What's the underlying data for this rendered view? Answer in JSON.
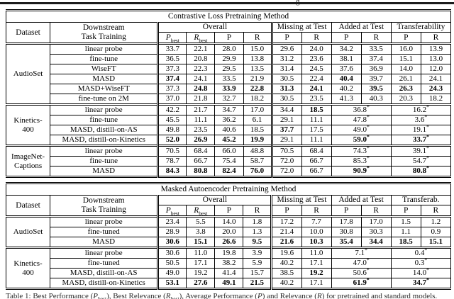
{
  "page": {
    "top_fragment": "g",
    "caption_segments": [
      {
        "t": "Table 1: Best Performance ("
      },
      {
        "t": "P",
        "i": 1
      },
      {
        "t": "best",
        "sub": 1
      },
      {
        "t": "), Best Relevance ("
      },
      {
        "t": "R",
        "i": 1
      },
      {
        "t": "best",
        "sub": 1
      },
      {
        "t": "), Average Performance ("
      },
      {
        "t": "P",
        "i": 1
      },
      {
        "t": ") and Relevance ("
      },
      {
        "t": "R",
        "i": 1
      },
      {
        "t": ") for pretrained and standard models."
      }
    ]
  },
  "tables": [
    {
      "title": "Contrastive Loss Pretraining Method",
      "header": {
        "dataset": "Dataset",
        "task": [
          "Downstream",
          "Task Training"
        ],
        "groups": [
          {
            "label": "Overall",
            "cols": [
              {
                "p": "P",
                "sub": "best",
                "i": 1
              },
              {
                "p": "R",
                "sub": "best",
                "i": 1
              },
              {
                "p": "P"
              },
              {
                "p": "R"
              }
            ]
          },
          {
            "label": "Missing at Test",
            "cols": [
              {
                "p": "P"
              },
              {
                "p": "R"
              }
            ]
          },
          {
            "label": "Added at Test",
            "cols": [
              {
                "p": "P"
              },
              {
                "p": "R"
              }
            ]
          },
          {
            "label": "Transferability",
            "cols": [
              {
                "p": "P"
              },
              {
                "p": "R"
              }
            ]
          }
        ]
      },
      "groups": [
        {
          "dataset_lines": [
            "AudioSet"
          ],
          "rows": [
            {
              "method": "linear probe",
              "cells": [
                {
                  "v": "33.7"
                },
                {
                  "v": "22.1"
                },
                {
                  "v": "28.0"
                },
                {
                  "v": "15.0"
                },
                {
                  "v": "29.6"
                },
                {
                  "v": "24.0"
                },
                {
                  "v": "34.2"
                },
                {
                  "v": "33.5"
                },
                {
                  "v": "16.0"
                },
                {
                  "v": "13.9"
                }
              ]
            },
            {
              "method": "fine-tune",
              "cells": [
                {
                  "v": "36.5"
                },
                {
                  "v": "20.8"
                },
                {
                  "v": "29.9"
                },
                {
                  "v": "13.8"
                },
                {
                  "v": "31.2"
                },
                {
                  "v": "23.6"
                },
                {
                  "v": "38.1"
                },
                {
                  "v": "37.4"
                },
                {
                  "v": "15.1"
                },
                {
                  "v": "13.0"
                }
              ]
            },
            {
              "method": "WiseFT",
              "cells": [
                {
                  "v": "37.3"
                },
                {
                  "v": "22.3"
                },
                {
                  "v": "29.5"
                },
                {
                  "v": "13.5"
                },
                {
                  "v": "31.4"
                },
                {
                  "v": "24.5"
                },
                {
                  "v": "37.6"
                },
                {
                  "v": "36.9"
                },
                {
                  "v": "14.0"
                },
                {
                  "v": "12.0"
                }
              ]
            },
            {
              "method": "MASD",
              "cells": [
                {
                  "v": "37.4",
                  "b": 1
                },
                {
                  "v": "24.1"
                },
                {
                  "v": "33.5"
                },
                {
                  "v": "21.9"
                },
                {
                  "v": "30.5"
                },
                {
                  "v": "22.4"
                },
                {
                  "v": "40.4",
                  "b": 1
                },
                {
                  "v": "39.7"
                },
                {
                  "v": "26.1"
                },
                {
                  "v": "24.1"
                }
              ]
            },
            {
              "method": "MASD+WiseFT",
              "cells": [
                {
                  "v": "37.3"
                },
                {
                  "v": "24.8",
                  "b": 1
                },
                {
                  "v": "33.9",
                  "b": 1
                },
                {
                  "v": "22.8",
                  "b": 1
                },
                {
                  "v": "31.3",
                  "b": 1
                },
                {
                  "v": "24.1",
                  "b": 1
                },
                {
                  "v": "40.2"
                },
                {
                  "v": "39.5",
                  "b": 1
                },
                {
                  "v": "26.3",
                  "b": 1
                },
                {
                  "v": "24.3",
                  "b": 1
                }
              ]
            },
            {
              "method": "fine-tune on 2M",
              "cells": [
                {
                  "v": "37.0"
                },
                {
                  "v": "21.8"
                },
                {
                  "v": "32.7"
                },
                {
                  "v": "18.2"
                },
                {
                  "v": "30.5"
                },
                {
                  "v": "23.5"
                },
                {
                  "v": "41.3"
                },
                {
                  "v": "40.3"
                },
                {
                  "v": "20.3"
                },
                {
                  "v": "18.2"
                }
              ]
            }
          ]
        },
        {
          "dataset_lines": [
            "Kinetics-",
            "400"
          ],
          "rows": [
            {
              "method": "linear probe",
              "cells": [
                {
                  "v": "42.2"
                },
                {
                  "v": "21.7"
                },
                {
                  "v": "34.7"
                },
                {
                  "v": "17.0"
                },
                {
                  "v": "34.4"
                },
                {
                  "v": "18.5",
                  "b": 1
                },
                {
                  "v": "36.8",
                  "m": 1
                },
                {
                  "v": "16.2",
                  "m": 1
                }
              ]
            },
            {
              "method": "fine-tune",
              "cells": [
                {
                  "v": "45.5"
                },
                {
                  "v": "11.1"
                },
                {
                  "v": "36.2"
                },
                {
                  "v": "6.1"
                },
                {
                  "v": "29.1"
                },
                {
                  "v": "11.1"
                },
                {
                  "v": "47.8",
                  "m": 1
                },
                {
                  "v": "3.6",
                  "m": 1
                }
              ]
            },
            {
              "method": "MASD, distill-on-AS",
              "cells": [
                {
                  "v": "49.8"
                },
                {
                  "v": "23.5"
                },
                {
                  "v": "40.6"
                },
                {
                  "v": "18.5"
                },
                {
                  "v": "37.7",
                  "b": 1
                },
                {
                  "v": "17.5"
                },
                {
                  "v": "49.0",
                  "m": 1
                },
                {
                  "v": "19.1",
                  "m": 1
                }
              ]
            },
            {
              "method": "MASD, distill-on-Kinetics",
              "cells": [
                {
                  "v": "52.0",
                  "b": 1
                },
                {
                  "v": "26.9",
                  "b": 1
                },
                {
                  "v": "45.2",
                  "b": 1
                },
                {
                  "v": "19.9",
                  "b": 1
                },
                {
                  "v": "29.1"
                },
                {
                  "v": "11.1"
                },
                {
                  "v": "59.0",
                  "m": 1,
                  "b": 1
                },
                {
                  "v": "33.7",
                  "m": 1,
                  "b": 1
                }
              ]
            }
          ]
        },
        {
          "dataset_lines": [
            "ImageNet-",
            "Captions"
          ],
          "rows": [
            {
              "method": "linear probe",
              "cells": [
                {
                  "v": "70.5"
                },
                {
                  "v": "68.4"
                },
                {
                  "v": "66.0"
                },
                {
                  "v": "48.8"
                },
                {
                  "v": "70.5"
                },
                {
                  "v": "68.4"
                },
                {
                  "v": "74.3",
                  "m": 1
                },
                {
                  "v": "39.1",
                  "m": 1
                }
              ]
            },
            {
              "method": "fine-tune",
              "cells": [
                {
                  "v": "78.7"
                },
                {
                  "v": "66.7"
                },
                {
                  "v": "75.4"
                },
                {
                  "v": "58.7"
                },
                {
                  "v": "72.0"
                },
                {
                  "v": "66.7"
                },
                {
                  "v": "85.3",
                  "m": 1
                },
                {
                  "v": "54.7",
                  "m": 1
                }
              ]
            },
            {
              "method": "MASD",
              "cells": [
                {
                  "v": "84.3",
                  "b": 1
                },
                {
                  "v": "80.8",
                  "b": 1
                },
                {
                  "v": "82.4",
                  "b": 1
                },
                {
                  "v": "76.0",
                  "b": 1
                },
                {
                  "v": "72.0"
                },
                {
                  "v": "66.7"
                },
                {
                  "v": "90.9",
                  "m": 1,
                  "b": 1
                },
                {
                  "v": "80.8",
                  "m": 1,
                  "b": 1
                }
              ]
            }
          ]
        }
      ]
    },
    {
      "title": "Masked Autoencoder Pretraining Method",
      "header": {
        "dataset": "Dataset",
        "task": [
          "Downstream",
          "Task Training"
        ],
        "groups": [
          {
            "label": "Overall",
            "cols": [
              {
                "p": "P",
                "sub": "best",
                "i": 1
              },
              {
                "p": "R",
                "sub": "best",
                "i": 1
              },
              {
                "p": "P"
              },
              {
                "p": "R"
              }
            ]
          },
          {
            "label": "Missing at Test",
            "cols": [
              {
                "p": "P"
              },
              {
                "p": "R"
              }
            ]
          },
          {
            "label": "Added at Test",
            "cols": [
              {
                "p": "P"
              },
              {
                "p": "R"
              }
            ]
          },
          {
            "label": "Transferab.",
            "cols": [
              {
                "p": "P"
              },
              {
                "p": "R"
              }
            ]
          }
        ]
      },
      "groups": [
        {
          "dataset_lines": [
            "AudioSet"
          ],
          "rows": [
            {
              "method": "linear probe",
              "cells": [
                {
                  "v": "23.4"
                },
                {
                  "v": "5.5"
                },
                {
                  "v": "14.0"
                },
                {
                  "v": "1.8"
                },
                {
                  "v": "17.2"
                },
                {
                  "v": "7.7"
                },
                {
                  "v": "17.8"
                },
                {
                  "v": "17.0"
                },
                {
                  "v": "1.5"
                },
                {
                  "v": "1.2"
                }
              ]
            },
            {
              "method": "fine-tuned",
              "cells": [
                {
                  "v": "28.9"
                },
                {
                  "v": "3.8"
                },
                {
                  "v": "20.0"
                },
                {
                  "v": "1.3"
                },
                {
                  "v": "21.4"
                },
                {
                  "v": "10.0"
                },
                {
                  "v": "30.8"
                },
                {
                  "v": "30.3"
                },
                {
                  "v": "1.1"
                },
                {
                  "v": "0.9"
                }
              ]
            },
            {
              "method": "MASD",
              "cells": [
                {
                  "v": "30.6",
                  "b": 1
                },
                {
                  "v": "15.1",
                  "b": 1
                },
                {
                  "v": "26.6",
                  "b": 1
                },
                {
                  "v": "9.5",
                  "b": 1
                },
                {
                  "v": "21.6",
                  "b": 1
                },
                {
                  "v": "10.3",
                  "b": 1
                },
                {
                  "v": "35.4",
                  "b": 1
                },
                {
                  "v": "34.4",
                  "b": 1
                },
                {
                  "v": "18.5",
                  "b": 1
                },
                {
                  "v": "15.1",
                  "b": 1
                }
              ]
            }
          ]
        },
        {
          "dataset_lines": [
            "Kinetics-",
            "400"
          ],
          "rows": [
            {
              "method": "linear probe",
              "cells": [
                {
                  "v": "30.6"
                },
                {
                  "v": "11.0"
                },
                {
                  "v": "19.8"
                },
                {
                  "v": "3.9"
                },
                {
                  "v": "19.6"
                },
                {
                  "v": "11.0"
                },
                {
                  "v": "7.1",
                  "m": 1
                },
                {
                  "v": "0.4",
                  "m": 1
                }
              ]
            },
            {
              "method": "fine-tuned",
              "cells": [
                {
                  "v": "50.5"
                },
                {
                  "v": "17.1"
                },
                {
                  "v": "38.2"
                },
                {
                  "v": "5.9"
                },
                {
                  "v": "40.2"
                },
                {
                  "v": "17.1"
                },
                {
                  "v": "47.0",
                  "m": 1
                },
                {
                  "v": "0.3",
                  "m": 1
                }
              ]
            },
            {
              "method": "MASD, distill-on-AS",
              "cells": [
                {
                  "v": "49.0"
                },
                {
                  "v": "19.2"
                },
                {
                  "v": "41.4"
                },
                {
                  "v": "15.7"
                },
                {
                  "v": "38.5"
                },
                {
                  "v": "19.2",
                  "b": 1
                },
                {
                  "v": "50.6",
                  "m": 1
                },
                {
                  "v": "14.0",
                  "m": 1
                }
              ]
            },
            {
              "method": "MASD, distill-on-Kinetics",
              "cells": [
                {
                  "v": "53.1",
                  "b": 1
                },
                {
                  "v": "27.6",
                  "b": 1
                },
                {
                  "v": "49.1",
                  "b": 1
                },
                {
                  "v": "21.5",
                  "b": 1
                },
                {
                  "v": "40.2"
                },
                {
                  "v": "17.1"
                },
                {
                  "v": "61.9",
                  "m": 1,
                  "b": 1
                },
                {
                  "v": "34.7",
                  "m": 1,
                  "b": 1
                }
              ]
            }
          ]
        }
      ]
    }
  ]
}
